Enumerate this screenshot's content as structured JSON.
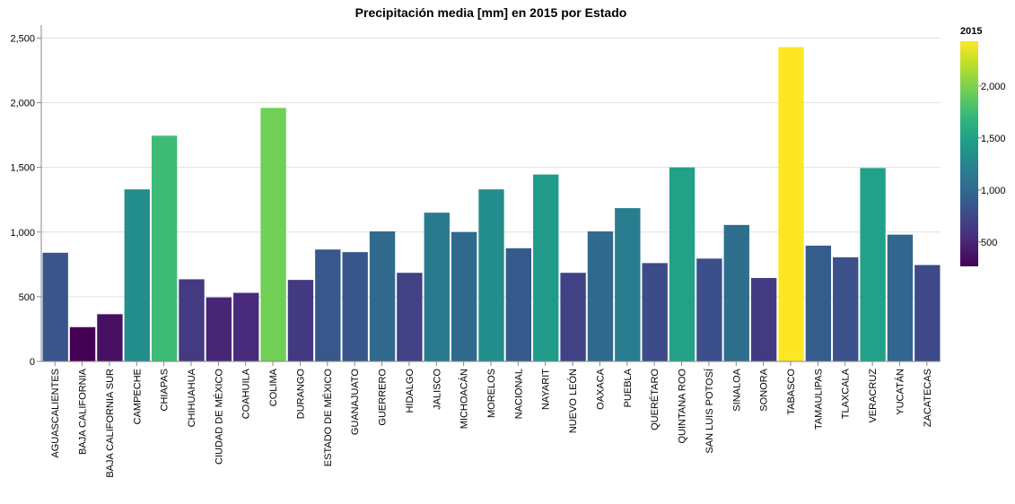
{
  "chart_data": {
    "type": "bar",
    "title": "Precipitación media [mm] en 2015 por Estado",
    "xlabel": "",
    "ylabel": "",
    "ylim": [
      0,
      2600
    ],
    "yticks": [
      0,
      500,
      1000,
      1500,
      2000,
      2500
    ],
    "ytick_labels": [
      "0",
      "500",
      "1,000",
      "1,500",
      "2,000",
      "2,500"
    ],
    "grid": true,
    "categories": [
      "AGUASCALIENTES",
      "BAJA CALIFORNIA",
      "BAJA CALIFORNIA SUR",
      "CAMPECHE",
      "CHIAPAS",
      "CHIHUAHUA",
      "CIUDAD DE MÉXICO",
      "COAHUILA",
      "COLIMA",
      "DURANGO",
      "ESTADO DE MÉXICO",
      "GUANAJUATO",
      "GUERRERO",
      "HIDALGO",
      "JALISCO",
      "MICHOACÁN",
      "MORELOS",
      "NACIONAL",
      "NAYARIT",
      "NUEVO LEÓN",
      "OAXACA",
      "PUEBLA",
      "QUERÉTARO",
      "QUINTANA ROO",
      "SAN LUIS POTOSÍ",
      "SINALOA",
      "SONORA",
      "TABASCO",
      "TAMAULIPAS",
      "TLAXCALA",
      "VERACRUZ",
      "YUCATÁN",
      "ZACATECAS"
    ],
    "values": [
      840,
      265,
      365,
      1330,
      1745,
      635,
      495,
      530,
      1960,
      630,
      865,
      845,
      1005,
      685,
      1150,
      1000,
      1330,
      875,
      1445,
      685,
      1005,
      1185,
      760,
      1500,
      795,
      1055,
      645,
      2430,
      895,
      805,
      1495,
      980,
      745
    ],
    "legend": {
      "title": "2015",
      "position": "right",
      "min": 265,
      "max": 2430,
      "ticks": [
        500,
        1000,
        1500,
        2000
      ],
      "tick_labels": [
        "500",
        "1,000",
        "1,500",
        "2,000"
      ]
    },
    "colorscale": [
      "#440154",
      "#482878",
      "#3e4989",
      "#31688e",
      "#26828e",
      "#1f9e89",
      "#35b779",
      "#6ece58",
      "#b5de2b",
      "#fde725"
    ]
  }
}
